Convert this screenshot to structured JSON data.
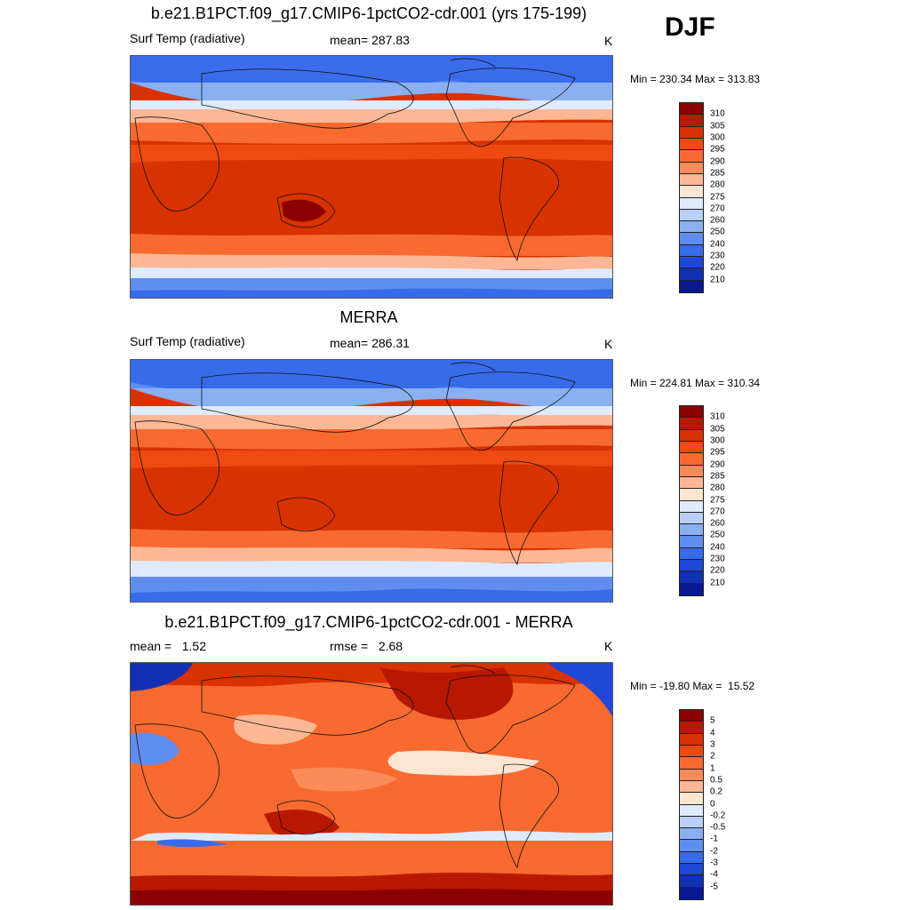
{
  "season": "DJF",
  "panels": [
    {
      "title": "b.e21.B1PCT.f09_g17.CMIP6-1pctCO2-cdr.001 (yrs 175-199)",
      "left_label": "Surf Temp (radiative)",
      "center_label": "mean= 287.83",
      "units": "K",
      "minmax": "Min = 230.34 Max = 313.83",
      "colorbar_labels": [
        "310",
        "305",
        "300",
        "295",
        "290",
        "285",
        "280",
        "275",
        "270",
        "260",
        "250",
        "240",
        "230",
        "220",
        "210"
      ],
      "colorbar_colors": [
        "#8b0000",
        "#b81800",
        "#d83200",
        "#ee4a12",
        "#f86a30",
        "#fb8c5a",
        "#fdb794",
        "#fee5d2",
        "#dfeafc",
        "#b8d0f8",
        "#8ab0f2",
        "#5f8ef0",
        "#386bea",
        "#1f48d8",
        "#1230b4",
        "#0a1890"
      ]
    },
    {
      "title": "MERRA",
      "left_label": "Surf Temp (radiative)",
      "center_label": "mean= 286.31",
      "units": "K",
      "minmax": "Min = 224.81 Max = 310.34",
      "colorbar_labels": [
        "310",
        "305",
        "300",
        "295",
        "290",
        "285",
        "280",
        "275",
        "270",
        "260",
        "250",
        "240",
        "230",
        "220",
        "210"
      ],
      "colorbar_colors": [
        "#8b0000",
        "#b81800",
        "#d83200",
        "#ee4a12",
        "#f86a30",
        "#fb8c5a",
        "#fdb794",
        "#fee5d2",
        "#dfeafc",
        "#b8d0f8",
        "#8ab0f2",
        "#5f8ef0",
        "#386bea",
        "#1f48d8",
        "#1230b4",
        "#0a1890"
      ]
    },
    {
      "title": "b.e21.B1PCT.f09_g17.CMIP6-1pctCO2-cdr.001 - MERRA",
      "left_label": "mean =   1.52",
      "center_label": "rmse =   2.68",
      "units": "K",
      "minmax": "Min = -19.80 Max =  15.52",
      "colorbar_labels": [
        "5",
        "4",
        "3",
        "2",
        "1",
        "0.5",
        "0.2",
        "0",
        "-0.2",
        "-0.5",
        "-1",
        "-2",
        "-3",
        "-4",
        "-5"
      ],
      "colorbar_colors": [
        "#8b0000",
        "#b81800",
        "#d83200",
        "#ee4a12",
        "#f86a30",
        "#fb8c5a",
        "#fdb794",
        "#fee5d2",
        "#dfeafc",
        "#b8d0f8",
        "#8ab0f2",
        "#5f8ef0",
        "#386bea",
        "#1f48d8",
        "#1230b4",
        "#0a1890"
      ]
    }
  ]
}
